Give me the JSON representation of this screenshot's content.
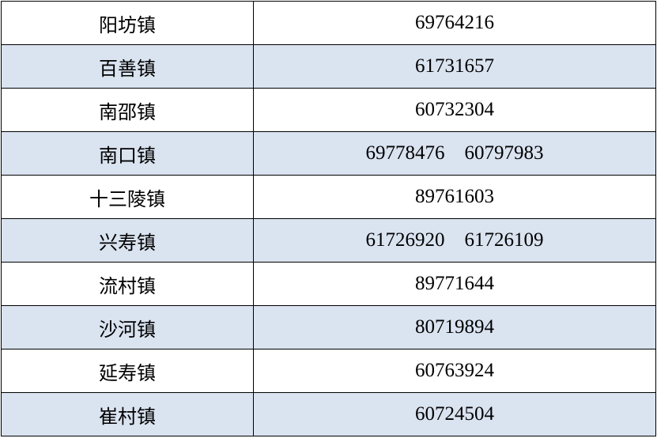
{
  "rows": [
    {
      "town": "阳坊镇",
      "phone": "69764216"
    },
    {
      "town": "百善镇",
      "phone": "61731657"
    },
    {
      "town": "南邵镇",
      "phone": "60732304"
    },
    {
      "town": "南口镇",
      "phone": "69778476    60797983"
    },
    {
      "town": "十三陵镇",
      "phone": "89761603"
    },
    {
      "town": "兴寿镇",
      "phone": "61726920    61726109"
    },
    {
      "town": "流村镇",
      "phone": "89771644"
    },
    {
      "town": "沙河镇",
      "phone": "80719894"
    },
    {
      "town": "延寿镇",
      "phone": "60763924"
    },
    {
      "town": "崔村镇",
      "phone": "60724504"
    }
  ],
  "colors": {
    "stripe": "#dae3f0",
    "border": "#000000"
  }
}
